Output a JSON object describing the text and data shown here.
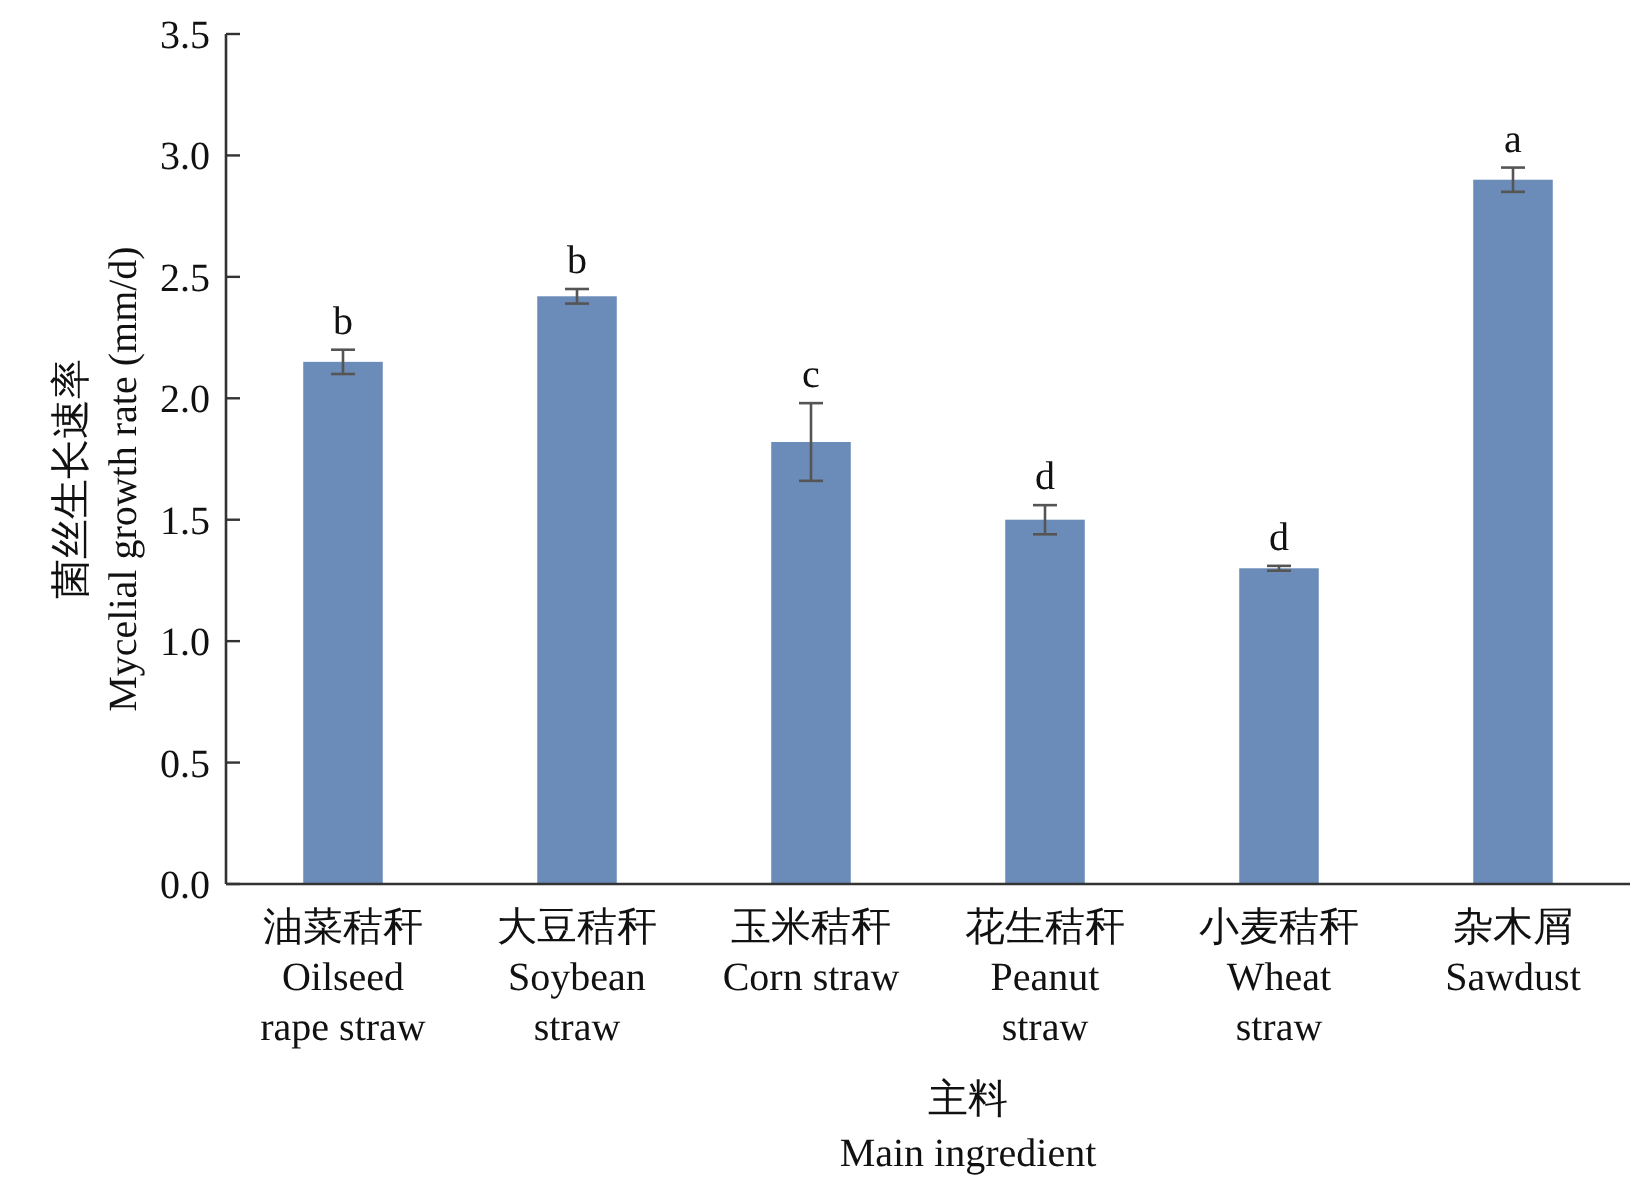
{
  "chart_data": {
    "type": "bar",
    "categories": [
      "油菜秸秆\nOilseed\nrape straw",
      "大豆秸秆\nSoybean\nstraw",
      "玉米秸秆\nCorn straw",
      "花生秸秆\nPeanut\nstraw",
      "小麦秸秆\nWheat\nstraw",
      "杂木屑\nSawdust"
    ],
    "values": [
      2.15,
      2.42,
      1.82,
      1.5,
      1.3,
      2.9
    ],
    "errors": [
      0.05,
      0.03,
      0.16,
      0.06,
      0.01,
      0.05
    ],
    "color": "#6b8cb8",
    "xlabel": "主料\nMain ingredient",
    "ylabel": "菌丝生长速率\nMycelial growth rate (mm/d)",
    "ylim": [
      0,
      3.5
    ],
    "yticks": [
      {
        "value": 0,
        "label": "0.0"
      },
      {
        "value": 0.5,
        "label": "0.5"
      },
      {
        "value": 1,
        "label": "1.0"
      },
      {
        "value": 1.5,
        "label": "1.5"
      },
      {
        "value": 2,
        "label": "2.0"
      },
      {
        "value": 2.5,
        "label": "2.5"
      },
      {
        "value": 3,
        "label": "3.0"
      },
      {
        "value": 3.5,
        "label": "3.5"
      }
    ],
    "annotations": [
      {
        "text": "b",
        "x": "油菜秸秆\nOilseed\nrape straw",
        "y": 2.2
      },
      {
        "text": "b",
        "x": "大豆秸秆\nSoybean\nstraw",
        "y": 2.45
      },
      {
        "text": "c",
        "x": "玉米秸秆\nCorn straw",
        "y": 1.98
      },
      {
        "text": "d",
        "x": "花生秸秆\nPeanut\nstraw",
        "y": 1.56
      },
      {
        "text": "d",
        "x": "小麦秸秆\nWheat\nstraw",
        "y": 1.31
      },
      {
        "text": "a",
        "x": "杂木屑\nSawdust",
        "y": 2.95
      }
    ],
    "grid": false
  }
}
